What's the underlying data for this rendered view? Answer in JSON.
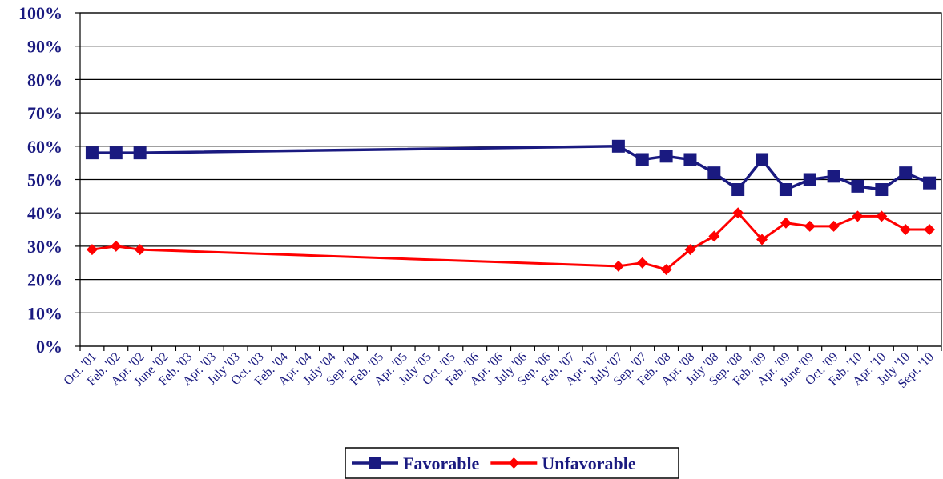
{
  "chart_data": {
    "type": "line",
    "categories": [
      "Oct. '01",
      "Feb. '02",
      "Apr. '02",
      "June '02",
      "Feb. '03",
      "Apr. '03",
      "July '03",
      "Oct. '03",
      "Feb. '04",
      "Apr. '04",
      "July '04",
      "Sep. '04",
      "Feb. '05",
      "Apr. '05",
      "July '05",
      "Oct. '05",
      "Feb. '06",
      "Apr. '06",
      "July '06",
      "Sep. '06",
      "Feb. '07",
      "Apr. '07",
      "July '07",
      "Sep. '07",
      "Feb. '08",
      "Apr. '08",
      "July '08",
      "Sep. '08",
      "Feb. '09",
      "Apr. '09",
      "June '09",
      "Oct. '09",
      "Feb. '10",
      "Apr. '10",
      "July '10",
      "Sept. '10"
    ],
    "series": [
      {
        "name": "Favorable",
        "color": "#1a1a80",
        "marker": "square",
        "values": [
          58,
          58,
          58,
          null,
          null,
          null,
          null,
          null,
          null,
          null,
          null,
          null,
          null,
          null,
          null,
          null,
          null,
          null,
          null,
          null,
          null,
          null,
          60,
          56,
          57,
          56,
          52,
          47,
          56,
          47,
          50,
          51,
          48,
          47,
          52,
          49
        ]
      },
      {
        "name": "Unfavorable",
        "color": "#ff0000",
        "marker": "diamond",
        "values": [
          29,
          30,
          29,
          null,
          null,
          null,
          null,
          null,
          null,
          null,
          null,
          null,
          null,
          null,
          null,
          null,
          null,
          null,
          null,
          null,
          null,
          null,
          24,
          25,
          23,
          29,
          33,
          40,
          32,
          37,
          36,
          36,
          39,
          39,
          35,
          35
        ]
      }
    ],
    "yticks": [
      "0%",
      "10%",
      "20%",
      "30%",
      "40%",
      "50%",
      "60%",
      "70%",
      "80%",
      "90%",
      "100%"
    ],
    "ylim": [
      0,
      100
    ],
    "grid": true,
    "legend": "bottom-center"
  }
}
